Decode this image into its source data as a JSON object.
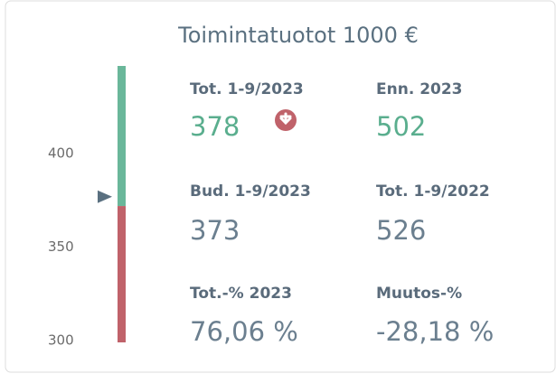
{
  "title": "Toimintatuotot 1000 €",
  "kpis": [
    {
      "label": "Tot. 1-9/2023",
      "value": 378
    },
    {
      "label": "Enn. 2023",
      "value": 502
    },
    {
      "label": "Bud. 1-9/2023",
      "value": 373
    },
    {
      "label": "Tot. 1-9/2022",
      "value": 526
    },
    {
      "label": "Tot.-% 2023",
      "value": "76,06 %"
    },
    {
      "label": "Muutos-%",
      "value": "-28,18 %"
    }
  ],
  "gauge": {
    "ylim": [
      300,
      448
    ],
    "yticks": [
      300,
      350,
      400
    ],
    "above_color": "#6ab79a",
    "below_color": "#c0626a",
    "marker_color": "#5a7080"
  }
}
